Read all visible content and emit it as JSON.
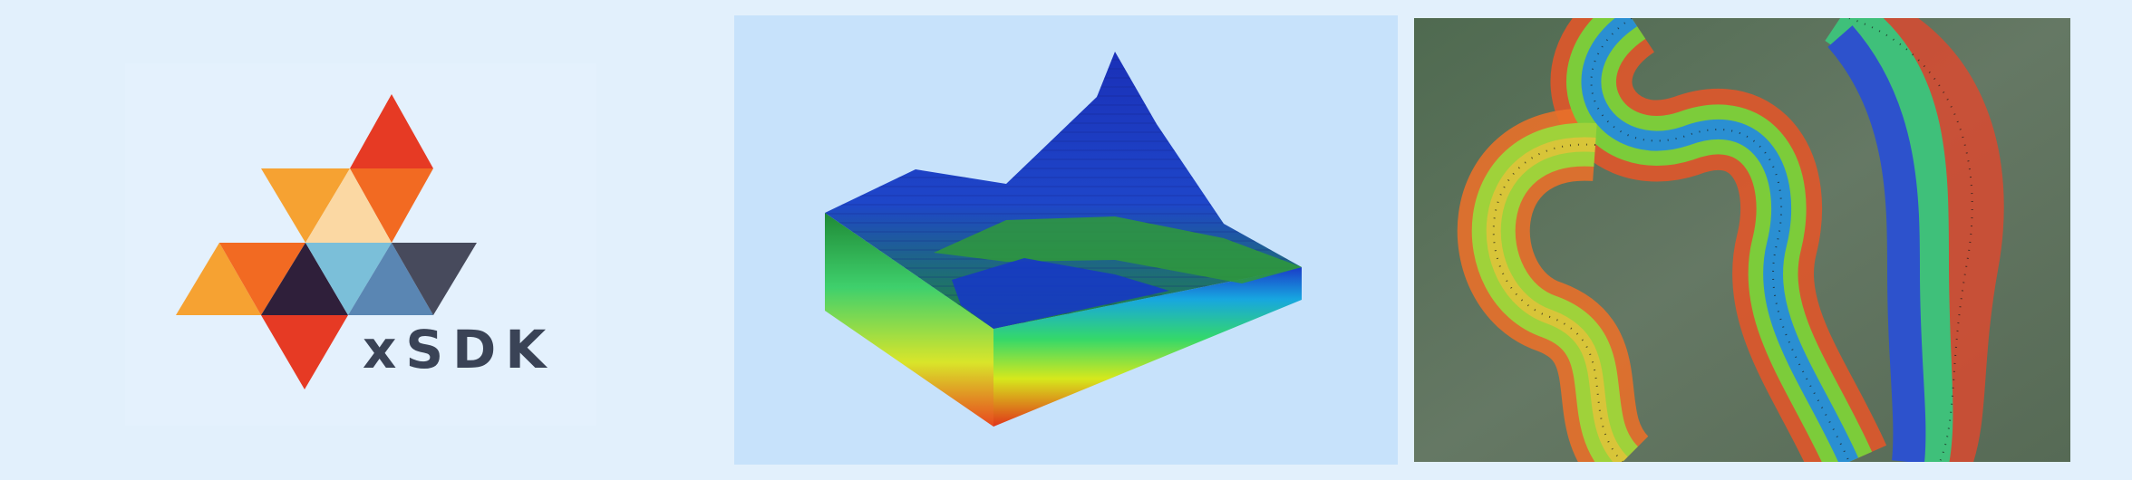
{
  "logo": {
    "text": "xSDK",
    "colors": [
      "#e63a24",
      "#f26a22",
      "#f6a232",
      "#fbd8a3",
      "#2f1f3a",
      "#7bbfd9",
      "#5a86b3",
      "#474a5c"
    ]
  },
  "images": {
    "terrain": "terrain-3d-model",
    "river": "river-flow-simulation-map"
  }
}
